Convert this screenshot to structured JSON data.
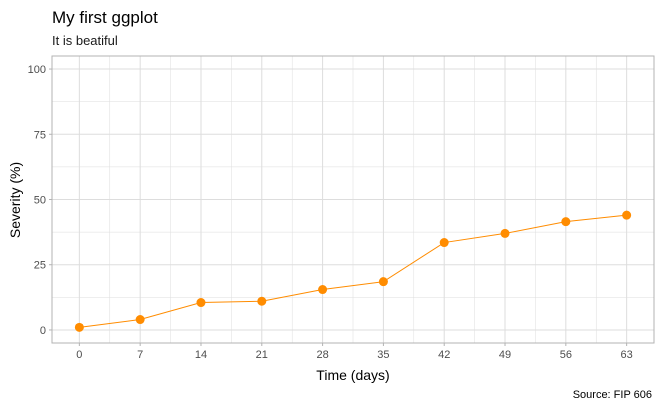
{
  "chart_data": {
    "type": "line",
    "title": "My first ggplot",
    "subtitle": "It is beatiful",
    "xlabel": "Time (days)",
    "ylabel": "Severity (%)",
    "caption": "Source: FIP 606",
    "x": [
      0,
      7,
      14,
      21,
      28,
      35,
      42,
      49,
      56,
      63
    ],
    "series": [
      {
        "values": [
          1,
          4,
          10.5,
          11,
          15.5,
          18.5,
          33.5,
          37,
          41.5,
          44
        ]
      }
    ],
    "xlim": [
      -3.15,
      66.15
    ],
    "ylim": [
      -5,
      105
    ],
    "xticks": [
      0,
      7,
      14,
      21,
      28,
      35,
      42,
      49,
      56,
      63
    ],
    "yticks": [
      0,
      25,
      50,
      75,
      100
    ],
    "grid": true,
    "legend": "none",
    "color": "#ff8c00",
    "panel_border_color": "#b3b3b3",
    "grid_color": "#dddddd"
  }
}
